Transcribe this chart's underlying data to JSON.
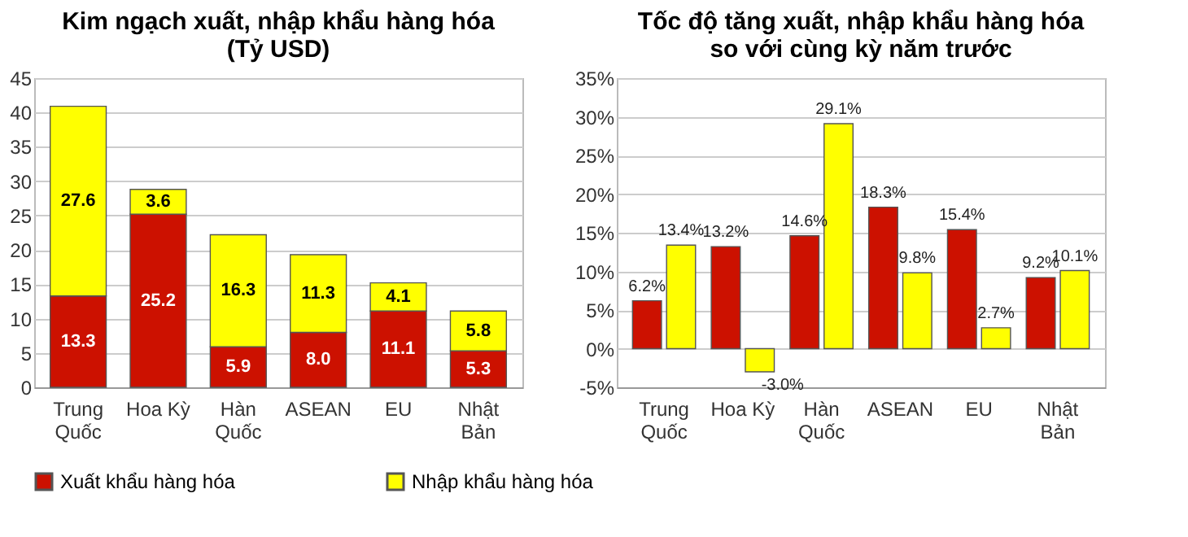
{
  "chart_data": [
    {
      "type": "bar",
      "title": "Kim ngạch xuất, nhập khẩu hàng hóa\n(Tỷ USD)",
      "stacked": true,
      "grid": "y",
      "legend": "bottom",
      "categories": [
        "Trung Quốc",
        "Hoa Kỳ",
        "Hàn Quốc",
        "ASEAN",
        "EU",
        "Nhật Bản"
      ],
      "ylim": [
        0,
        45
      ],
      "yticks": [
        0,
        5,
        10,
        15,
        20,
        25,
        30,
        35,
        40,
        45
      ],
      "series": [
        {
          "name": "Xuất khẩu hàng hóa",
          "color": "#cc1100",
          "values": [
            13.3,
            25.2,
            5.9,
            8.0,
            11.1,
            5.3
          ],
          "value_labels": [
            "13.3",
            "25.2",
            "5.9",
            "8.0",
            "11.1",
            "5.3"
          ]
        },
        {
          "name": "Nhập khẩu hàng hóa",
          "color": "#ffff00",
          "values": [
            27.6,
            3.6,
            16.3,
            11.3,
            4.1,
            5.8
          ],
          "value_labels": [
            "27.6",
            "3.6",
            "16.3",
            "11.3",
            "4.1",
            "5.8"
          ]
        }
      ]
    },
    {
      "type": "bar",
      "title": "Tốc độ tăng xuất, nhập khẩu hàng hóa\nso với cùng kỳ năm trước",
      "grid": "y",
      "categories": [
        "Trung Quốc",
        "Hoa Kỳ",
        "Hàn Quốc",
        "ASEAN",
        "EU",
        "Nhật Bản"
      ],
      "ylim": [
        -5,
        35
      ],
      "yticks": [
        {
          "value": -5,
          "label": "-5%"
        },
        {
          "value": 0,
          "label": "0%"
        },
        {
          "value": 5,
          "label": "5%"
        },
        {
          "value": 10,
          "label": "10%"
        },
        {
          "value": 15,
          "label": "15%"
        },
        {
          "value": 20,
          "label": "20%"
        },
        {
          "value": 25,
          "label": "25%"
        },
        {
          "value": 30,
          "label": "30%"
        },
        {
          "value": 35,
          "label": "35%"
        }
      ],
      "series": [
        {
          "name": "Xuất khẩu hàng hóa",
          "color": "#cc1100",
          "values": [
            6.2,
            13.2,
            14.6,
            18.3,
            15.4,
            9.2
          ],
          "value_labels": [
            "6.2%",
            "13.2%",
            "14.6%",
            "18.3%",
            "15.4%",
            "9.2%"
          ]
        },
        {
          "name": "Nhập khẩu hàng hóa",
          "color": "#ffff00",
          "values": [
            13.4,
            -3.0,
            29.1,
            9.8,
            2.7,
            10.1
          ],
          "value_labels": [
            "13.4%",
            "-3.0%",
            "29.1%",
            "9.8%",
            "2.7%",
            "10.1%"
          ]
        }
      ]
    }
  ]
}
